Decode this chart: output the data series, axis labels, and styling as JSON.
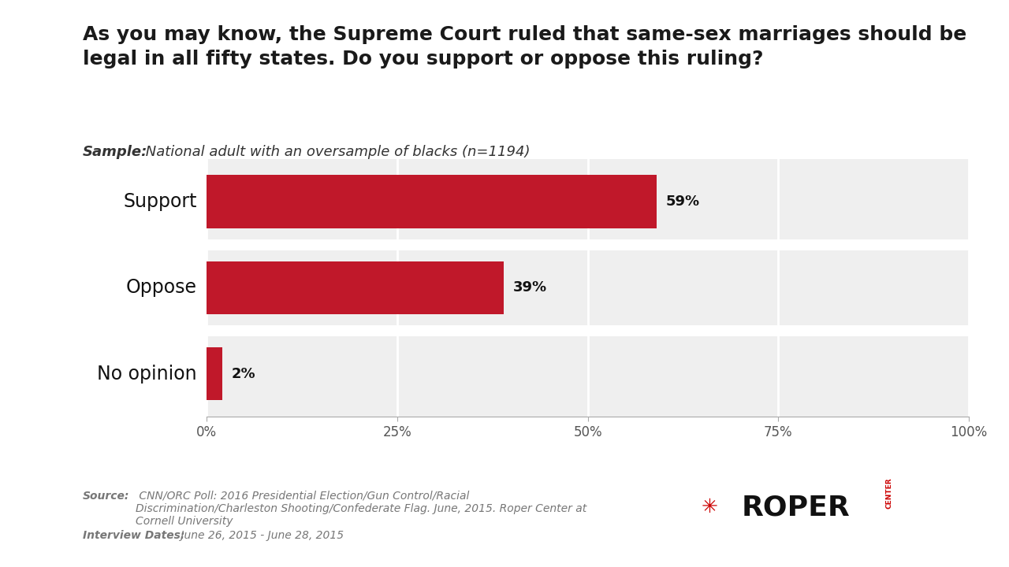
{
  "title_line1": "As you may know, the Supreme Court ruled that same-sex marriages should be",
  "title_line2": "legal in all fifty states. Do you support or oppose this ruling?",
  "sample_bold": "Sample:",
  "sample_normal": " National adult with an oversample of blacks (n=1194)",
  "categories": [
    "Support",
    "Oppose",
    "No opinion"
  ],
  "values": [
    59,
    39,
    2
  ],
  "bar_color": "#c0182a",
  "bg_color": "#efefef",
  "white": "#ffffff",
  "xlabel_ticks": [
    "0%",
    "25%",
    "50%",
    "75%",
    "100%"
  ],
  "xlabel_vals": [
    0,
    25,
    50,
    75,
    100
  ],
  "source_bold": "Source:",
  "source_normal": " CNN/ORC Poll: 2016 Presidential Election/Gun Control/Racial\nDiscrimination/Charleston Shooting/Confederate Flag. June, 2015. Roper Center at\nCornell University",
  "interview_bold": "Interview Dates:",
  "interview_normal": " June 26, 2015 - June 28, 2015",
  "title_fontsize": 18,
  "category_fontsize": 17,
  "tick_fontsize": 12,
  "pct_fontsize": 13,
  "footer_fontsize": 10,
  "sample_fontsize": 13,
  "separator_color": "#7a7a7a",
  "text_color": "#333333",
  "footer_color": "#777777"
}
